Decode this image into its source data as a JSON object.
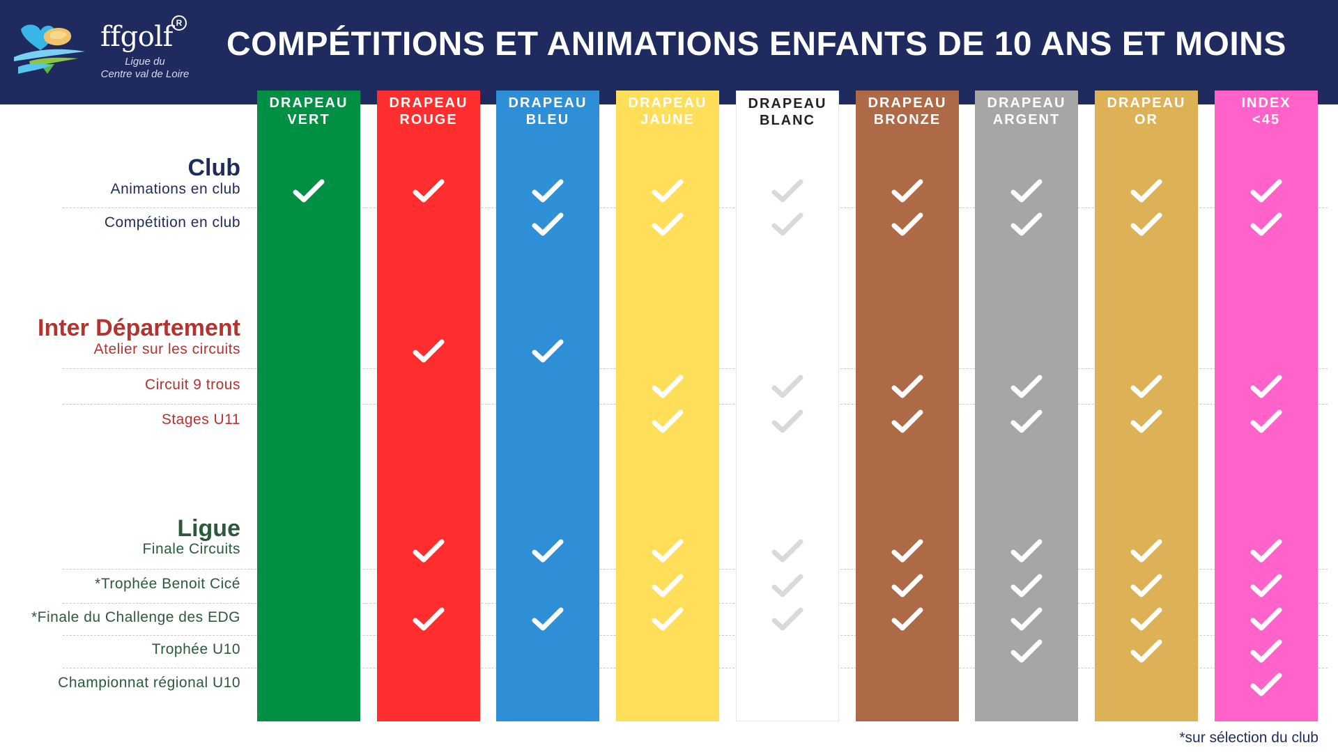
{
  "header": {
    "brand": "ffgolf",
    "brand_mark": "R",
    "league_line1": "Ligue du",
    "league_line2": "Centre val de Loire",
    "title": "COMPÉTITIONS ET ANIMATIONS ENFANTS DE 10 ANS ET MOINS"
  },
  "colors": {
    "navy": "#1f2b5e",
    "club_title": "#1f2b5e",
    "inter_title": "#b5332f",
    "ligue_title": "#2b5a3a"
  },
  "columns": [
    {
      "line1": "DRAPEAU",
      "line2": "VERT",
      "bg": "#008f43",
      "text": "#ffffff"
    },
    {
      "line1": "DRAPEAU",
      "line2": "ROUGE",
      "bg": "#ff2e2e",
      "text": "#ffffff"
    },
    {
      "line1": "DRAPEAU",
      "line2": "BLEU",
      "bg": "#2e8fd6",
      "text": "#ffffff"
    },
    {
      "line1": "DRAPEAU",
      "line2": "JAUNE",
      "bg": "#ffdf5a",
      "text": "#ffffff"
    },
    {
      "line1": "DRAPEAU",
      "line2": "BLANC",
      "bg": "#ffffff",
      "text": "#222222"
    },
    {
      "line1": "DRAPEAU",
      "line2": "BRONZE",
      "bg": "#ae6946",
      "text": "#ffffff"
    },
    {
      "line1": "DRAPEAU",
      "line2": "ARGENT",
      "bg": "#a6a6a6",
      "text": "#ffffff"
    },
    {
      "line1": "DRAPEAU",
      "line2": "OR",
      "bg": "#ddb257",
      "text": "#ffffff"
    },
    {
      "line1": "INDEX",
      "line2": "<45",
      "bg": "#ff62c8",
      "text": "#ffffff"
    }
  ],
  "sections": [
    {
      "title": "Club",
      "color": "#1f2b5e",
      "rows": [
        {
          "label": "Animations en club",
          "checks": [
            1,
            1,
            1,
            1,
            1,
            1,
            1,
            1,
            1
          ]
        },
        {
          "label": "Compétition en club",
          "checks": [
            0,
            0,
            1,
            1,
            1,
            1,
            1,
            1,
            1
          ]
        }
      ]
    },
    {
      "title": "Inter Département",
      "color": "#b5332f",
      "rows": [
        {
          "label": "Atelier sur les circuits",
          "checks": [
            0,
            1,
            1,
            0,
            0,
            0,
            0,
            0,
            0
          ]
        },
        {
          "label": "Circuit 9 trous",
          "checks": [
            0,
            0,
            0,
            1,
            1,
            1,
            1,
            1,
            1
          ]
        },
        {
          "label": "Stages U11",
          "checks": [
            0,
            0,
            0,
            1,
            1,
            1,
            1,
            1,
            1
          ]
        }
      ]
    },
    {
      "title": "Ligue",
      "color": "#2b5a3a",
      "rows": [
        {
          "label": "Finale Circuits",
          "checks": [
            0,
            1,
            1,
            1,
            1,
            1,
            1,
            1,
            1
          ]
        },
        {
          "label": "*Trophée Benoit Cicé",
          "checks": [
            0,
            0,
            0,
            1,
            1,
            1,
            1,
            1,
            1
          ]
        },
        {
          "label": "*Finale du Challenge des EDG",
          "checks": [
            0,
            1,
            1,
            1,
            1,
            1,
            1,
            1,
            1
          ]
        },
        {
          "label": "Trophée U10",
          "checks": [
            0,
            0,
            0,
            0,
            0,
            0,
            1,
            1,
            1
          ]
        },
        {
          "label": "Championnat régional U10",
          "checks": [
            0,
            0,
            0,
            0,
            0,
            0,
            0,
            0,
            1
          ]
        }
      ]
    }
  ],
  "footnote": "*sur sélection du club"
}
